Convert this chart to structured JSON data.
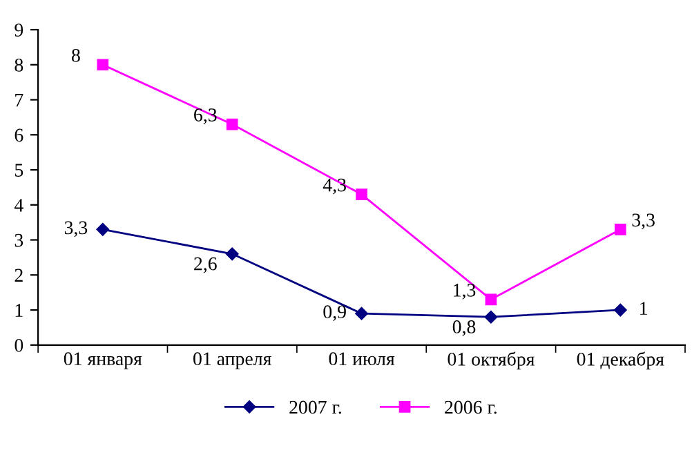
{
  "chart_data": {
    "type": "line",
    "categories": [
      "01 января",
      "01 апреля",
      "01 июля",
      "01 октября",
      "01 декабря"
    ],
    "series": [
      {
        "name": "2007 г.",
        "color": "#000080",
        "marker": "diamond",
        "values": [
          3.3,
          2.6,
          0.9,
          0.8,
          1
        ],
        "value_labels": [
          "3,3",
          "2,6",
          "0,9",
          "0,8",
          "1"
        ]
      },
      {
        "name": "2006 г.",
        "color": "#ff00ff",
        "marker": "square",
        "values": [
          8,
          6.3,
          4.3,
          1.3,
          3.3
        ],
        "value_labels": [
          "8",
          "6,3",
          "4,3",
          "1,3",
          "3,3"
        ]
      }
    ],
    "ylim": [
      0,
      9
    ],
    "yticks": [
      0,
      1,
      2,
      3,
      4,
      5,
      6,
      7,
      8,
      9
    ],
    "grid": false,
    "legend": "bottom",
    "line_style": "solid"
  }
}
